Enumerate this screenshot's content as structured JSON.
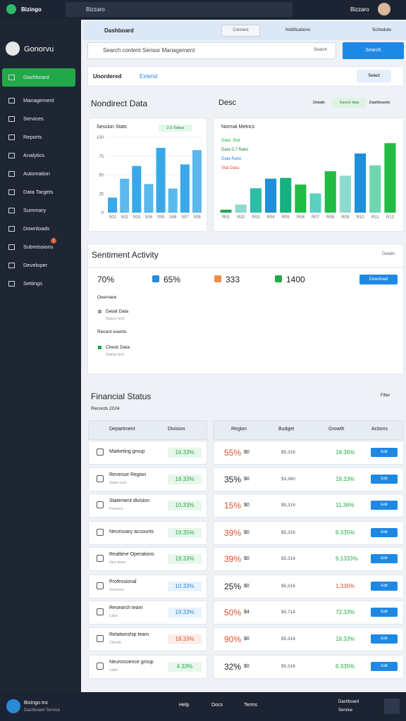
{
  "topbar": {
    "brand": "Bizingo",
    "search": "Bizzaro",
    "user": "Bizzaro"
  },
  "sidebar": {
    "user": "Gonorvu",
    "items": [
      "Dashboard",
      "Management",
      "Services",
      "Reports",
      "Analytics",
      "Automation",
      "Data Targets",
      "Summary",
      "Downloads",
      "Submissions",
      "Developer",
      "Settings"
    ],
    "badge": "1"
  },
  "header": {
    "title": "Dashboard",
    "button": "Connect",
    "links": [
      "Notifications",
      "Schedule"
    ]
  },
  "search": {
    "placeholder": "Search content Sensor Management",
    "hint": "Search",
    "button": "Search"
  },
  "tabs": {
    "items": [
      "Unordered",
      "Extend"
    ],
    "select": "Select"
  },
  "overview": {
    "title": "Nondirect Data",
    "subtitle": "Desc",
    "filters": [
      "Details",
      "Saved data",
      "Dashboards"
    ]
  },
  "charts": [
    {
      "title": "Session Stats",
      "badge": "2.0 Status",
      "categories": [
        "S01",
        "S02",
        "S03",
        "S04",
        "S05",
        "S06",
        "S07",
        "S08"
      ],
      "values": [
        20,
        45,
        62,
        38,
        86,
        32,
        64,
        83
      ],
      "colors": [
        "#3aa8e8",
        "#5ab8ec",
        "#3aa8e8",
        "#5ab8ec",
        "#3aa8e8",
        "#5ab8ec",
        "#3aa8e8",
        "#5ab8ec"
      ],
      "ylim": [
        0,
        100
      ],
      "yticks": [
        0,
        25,
        50,
        75,
        100
      ]
    },
    {
      "title": "Normal Metrics",
      "legend": [
        "Data: Stat",
        "Data 0.7 Ratio",
        "Data Ratio",
        "Stat Data"
      ],
      "categories": [
        "R01",
        "R02",
        "R03",
        "R04",
        "R05",
        "R06",
        "R07",
        "R08",
        "R09",
        "R10",
        "R11",
        "R12"
      ],
      "values": [
        4,
        11,
        33,
        46,
        47,
        38,
        26,
        56,
        50,
        80,
        64,
        94
      ],
      "colors": [
        "#22aa55",
        "#8ddbcf",
        "#2bbfa5",
        "#1e8fd8",
        "#17b07f",
        "#22bb44",
        "#5bd1c0",
        "#22bb44",
        "#8ddbcf",
        "#1e8fd8",
        "#6fd6b0",
        "#22bb44"
      ],
      "ylim": [
        0,
        100
      ]
    }
  ],
  "summary": {
    "title": "Sentiment Activity",
    "link": "Details",
    "stats": [
      "70%",
      "65%",
      "333",
      "1400"
    ],
    "button": "Download",
    "sections": [
      "Overview",
      "Recent events"
    ],
    "items": [
      [
        "Detail Data",
        "Status text"
      ],
      [
        "Check Data",
        "Status text"
      ]
    ]
  },
  "table": {
    "title": "Financial Status",
    "subtitle": "Records 2024",
    "filter": "Filter",
    "columns": [
      "Department",
      "Division",
      "Region",
      "Budget",
      "Growth",
      "Actions"
    ],
    "rows": [
      {
        "name": "Marketing group",
        "sub": "",
        "pct": "16.33%",
        "color": "#22aa44",
        "value": "55%",
        "vcolor": "#e2502a",
        "cur": "$0",
        "num": "$5,316",
        "pct2": "18.36%",
        "p2color": "#22aa44",
        "action": "Edit"
      },
      {
        "name": "Revenue Region",
        "sub": "Sales unit",
        "pct": "18.33%",
        "color": "#22aa44",
        "value": "35%",
        "vcolor": "#222222",
        "cur": "$0",
        "num": "$3,360",
        "pct2": "19.33%",
        "p2color": "#22aa44",
        "action": "Edit"
      },
      {
        "name": "Statement division",
        "sub": "Finance",
        "pct": "10.33%",
        "color": "#22aa44",
        "value": "15%",
        "vcolor": "#e2502a",
        "cur": "$0",
        "num": "$5,316",
        "pct2": "11.36%",
        "p2color": "#22aa44",
        "action": "Edit"
      },
      {
        "name": "Necessary accounts",
        "sub": "",
        "pct": "19.35%",
        "color": "#22aa44",
        "value": "39%",
        "vcolor": "#e2502a",
        "cur": "$0",
        "num": "$5,316",
        "pct2": "6.335%",
        "p2color": "#22aa44",
        "action": "Edit"
      },
      {
        "name": "Realtime Operations",
        "sub": "Ops team",
        "pct": "19.33%",
        "color": "#22aa44",
        "value": "39%",
        "vcolor": "#e2502a",
        "cur": "$0",
        "num": "$5,316",
        "pct2": "9.1333%",
        "p2color": "#22aa44",
        "action": "Edit"
      },
      {
        "name": "Professional",
        "sub": "Services",
        "pct": "10.33%",
        "color": "#2a8ad8",
        "value": "25%",
        "vcolor": "#222222",
        "cur": "$0",
        "num": "$5,316",
        "pct2": "1,336%",
        "p2color": "#e2502a",
        "action": "Edit"
      },
      {
        "name": "Research team",
        "sub": "Labs",
        "pct": "19.33%",
        "color": "#2a8ad8",
        "value": "50%",
        "vcolor": "#e2502a",
        "cur": "$4",
        "num": "$5,714",
        "pct2": "72.33%",
        "p2color": "#22aa44",
        "action": "Edit"
      },
      {
        "name": "Relationship team",
        "sub": "Clients",
        "pct": "18.33%",
        "color": "#e2502a",
        "value": "90%",
        "vcolor": "#e2502a",
        "cur": "$0",
        "num": "$5,316",
        "pct2": "19.33%",
        "p2color": "#22aa44",
        "action": "Edit"
      },
      {
        "name": "Neuroscience group",
        "sub": "Labs",
        "pct": "4.33%",
        "color": "#22aa44",
        "value": "32%",
        "vcolor": "#222222",
        "cur": "$0",
        "num": "$5,316",
        "pct2": "6.335%",
        "p2color": "#22aa44",
        "action": "Edit"
      }
    ]
  },
  "footer": {
    "company": "Bizingo Inc",
    "note": "Dashboard Service",
    "links": [
      "Help",
      "Docs",
      "Terms"
    ],
    "right": [
      "Dashboard",
      "Service"
    ]
  }
}
